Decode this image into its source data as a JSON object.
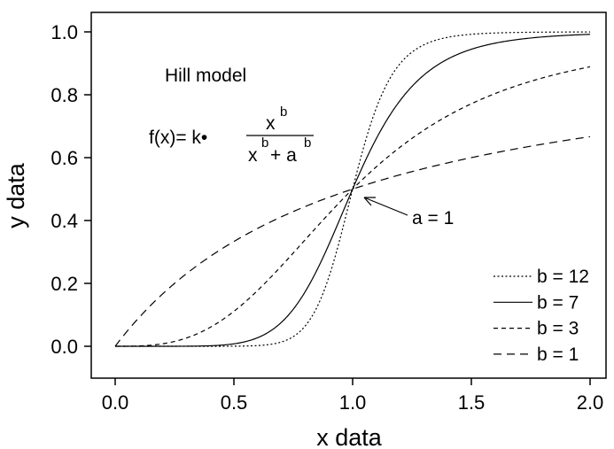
{
  "chart_data": {
    "type": "line",
    "title": "",
    "xlabel": "x data",
    "ylabel": "y data",
    "xlim": [
      -0.1,
      2.07
    ],
    "ylim": [
      -0.1,
      1.07
    ],
    "xticks": [
      "0.0",
      "0.5",
      "1.0",
      "1.5",
      "2.0"
    ],
    "yticks": [
      "0.0",
      "0.2",
      "0.4",
      "0.6",
      "0.8",
      "1.0"
    ],
    "grid": false,
    "legend_position": "bottom-right",
    "model": {
      "k": 1,
      "a": 1
    },
    "annotations": {
      "model_title": "Hill model",
      "formula_lhs": "f(x)= k•",
      "formula_num": "x",
      "formula_den_x": "x",
      "formula_plus": "+ a",
      "formula_exp": "b",
      "arrow_label": "a = 1"
    },
    "x": [
      0,
      0.25,
      0.5,
      0.75,
      1.0,
      1.25,
      1.5,
      1.75,
      2.0
    ],
    "series": [
      {
        "name": "b = 12",
        "b": 12,
        "style": "dotted",
        "values": [
          0,
          0,
          0.0002,
          0.031,
          0.5,
          0.936,
          0.992,
          0.999,
          1.0
        ]
      },
      {
        "name": "b = 7",
        "b": 7,
        "style": "solid",
        "values": [
          0,
          0.0001,
          0.0078,
          0.118,
          0.5,
          0.827,
          0.945,
          0.981,
          0.992
        ]
      },
      {
        "name": "b = 3",
        "b": 3,
        "style": "short-dash",
        "values": [
          0,
          0.015,
          0.111,
          0.297,
          0.5,
          0.661,
          0.771,
          0.843,
          0.889
        ]
      },
      {
        "name": "b = 1",
        "b": 1,
        "style": "long-dash",
        "values": [
          0,
          0.2,
          0.333,
          0.429,
          0.5,
          0.556,
          0.6,
          0.636,
          0.667
        ]
      }
    ]
  }
}
